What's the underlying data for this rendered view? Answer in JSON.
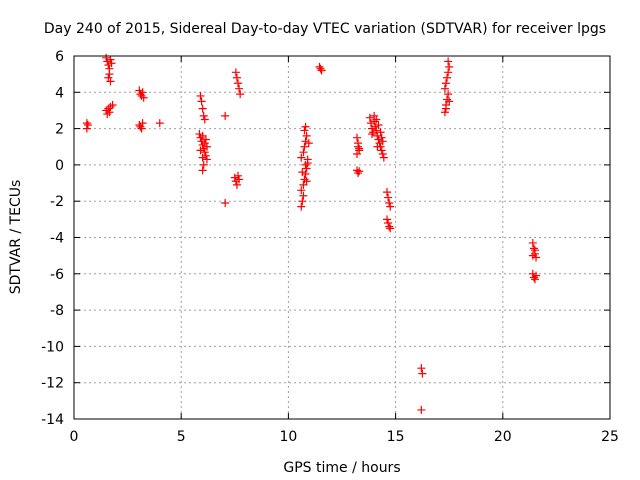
{
  "chart_data": {
    "type": "scatter",
    "title": "Day 240 of 2015, Sidereal Day-to-day VTEC variation (SDTVAR) for receiver lpgs",
    "xlabel": "GPS time / hours",
    "ylabel": "SDTVAR / TECUs",
    "xlim": [
      0,
      25
    ],
    "ylim": [
      -14,
      6
    ],
    "xticks": [
      0,
      5,
      10,
      15,
      20,
      25
    ],
    "yticks": [
      -14,
      -12,
      -10,
      -8,
      -6,
      -4,
      -2,
      0,
      2,
      4,
      6
    ],
    "grid": true,
    "marker": "+",
    "color": "#ff0000",
    "series": [
      {
        "name": "SDTVAR",
        "points": [
          [
            0.6,
            2.3
          ],
          [
            0.6,
            2.0
          ],
          [
            0.65,
            2.2
          ],
          [
            1.5,
            5.9
          ],
          [
            1.55,
            5.7
          ],
          [
            1.6,
            5.5
          ],
          [
            1.65,
            5.3
          ],
          [
            1.7,
            5.8
          ],
          [
            1.75,
            5.6
          ],
          [
            1.6,
            4.8
          ],
          [
            1.7,
            4.6
          ],
          [
            1.65,
            5.0
          ],
          [
            1.5,
            3.0
          ],
          [
            1.6,
            3.1
          ],
          [
            1.7,
            3.2
          ],
          [
            1.8,
            3.3
          ],
          [
            1.65,
            2.9
          ],
          [
            1.55,
            2.8
          ],
          [
            3.05,
            4.1
          ],
          [
            3.1,
            3.9
          ],
          [
            3.15,
            3.8
          ],
          [
            3.2,
            4.0
          ],
          [
            3.25,
            3.7
          ],
          [
            3.05,
            2.2
          ],
          [
            3.1,
            2.1
          ],
          [
            3.15,
            2.0
          ],
          [
            3.2,
            2.3
          ],
          [
            4.0,
            2.3
          ],
          [
            5.9,
            3.8
          ],
          [
            5.95,
            3.5
          ],
          [
            6.0,
            3.1
          ],
          [
            6.05,
            2.7
          ],
          [
            6.1,
            2.5
          ],
          [
            5.85,
            1.7
          ],
          [
            5.9,
            1.5
          ],
          [
            5.95,
            1.3
          ],
          [
            6.0,
            1.1
          ],
          [
            6.05,
            0.9
          ],
          [
            6.1,
            0.7
          ],
          [
            6.15,
            0.5
          ],
          [
            6.2,
            0.3
          ],
          [
            6.0,
            1.6
          ],
          [
            6.1,
            1.2
          ],
          [
            5.9,
            0.8
          ],
          [
            6.0,
            0.4
          ],
          [
            6.05,
            0.0
          ],
          [
            6.0,
            -0.3
          ],
          [
            6.2,
            1.0
          ],
          [
            6.15,
            1.4
          ],
          [
            7.05,
            2.7
          ],
          [
            7.05,
            -2.1
          ],
          [
            7.55,
            5.1
          ],
          [
            7.6,
            4.8
          ],
          [
            7.65,
            4.5
          ],
          [
            7.7,
            4.2
          ],
          [
            7.75,
            3.9
          ],
          [
            7.5,
            -0.7
          ],
          [
            7.55,
            -0.9
          ],
          [
            7.6,
            -1.1
          ],
          [
            7.7,
            -0.8
          ],
          [
            7.65,
            -0.6
          ],
          [
            10.6,
            -2.3
          ],
          [
            10.65,
            -2.0
          ],
          [
            10.7,
            -1.7
          ],
          [
            10.6,
            -1.4
          ],
          [
            10.7,
            -1.1
          ],
          [
            10.75,
            -0.8
          ],
          [
            10.8,
            -0.5
          ],
          [
            10.85,
            -0.2
          ],
          [
            10.9,
            0.1
          ],
          [
            10.6,
            0.4
          ],
          [
            10.7,
            0.7
          ],
          [
            10.75,
            1.0
          ],
          [
            10.8,
            1.3
          ],
          [
            10.85,
            1.6
          ],
          [
            10.8,
            2.1
          ],
          [
            10.75,
            1.9
          ],
          [
            10.9,
            0.3
          ],
          [
            10.95,
            1.2
          ],
          [
            10.65,
            -0.4
          ],
          [
            10.85,
            -0.9
          ],
          [
            10.8,
            0.0
          ],
          [
            11.45,
            5.4
          ],
          [
            11.5,
            5.3
          ],
          [
            11.55,
            5.2
          ],
          [
            13.2,
            1.5
          ],
          [
            13.25,
            1.2
          ],
          [
            13.3,
            0.9
          ],
          [
            13.2,
            0.6
          ],
          [
            13.3,
            0.8
          ],
          [
            13.25,
            1.0
          ],
          [
            13.2,
            -0.3
          ],
          [
            13.25,
            -0.45
          ],
          [
            13.3,
            -0.35
          ],
          [
            13.8,
            2.6
          ],
          [
            13.85,
            2.3
          ],
          [
            13.9,
            2.0
          ],
          [
            13.95,
            1.8
          ],
          [
            14.0,
            2.4
          ],
          [
            14.05,
            2.1
          ],
          [
            14.1,
            1.9
          ],
          [
            14.15,
            1.6
          ],
          [
            14.2,
            1.4
          ],
          [
            14.25,
            1.2
          ],
          [
            14.3,
            1.0
          ],
          [
            14.35,
            0.8
          ],
          [
            14.4,
            0.6
          ],
          [
            14.45,
            0.4
          ],
          [
            14.0,
            2.7
          ],
          [
            14.1,
            2.5
          ],
          [
            14.2,
            2.2
          ],
          [
            14.3,
            1.8
          ],
          [
            14.35,
            1.5
          ],
          [
            13.9,
            1.7
          ],
          [
            14.15,
            1.0
          ],
          [
            14.4,
            1.3
          ],
          [
            14.6,
            -1.5
          ],
          [
            14.65,
            -1.8
          ],
          [
            14.7,
            -2.1
          ],
          [
            14.75,
            -2.3
          ],
          [
            14.6,
            -3.0
          ],
          [
            14.65,
            -3.2
          ],
          [
            14.7,
            -3.4
          ],
          [
            14.75,
            -3.5
          ],
          [
            16.2,
            -11.2
          ],
          [
            16.25,
            -11.5
          ],
          [
            16.2,
            -13.5
          ],
          [
            17.3,
            2.9
          ],
          [
            17.35,
            3.3
          ],
          [
            17.4,
            3.6
          ],
          [
            17.45,
            3.9
          ],
          [
            17.3,
            4.2
          ],
          [
            17.35,
            4.5
          ],
          [
            17.4,
            4.8
          ],
          [
            17.45,
            5.1
          ],
          [
            17.5,
            5.4
          ],
          [
            17.45,
            5.7
          ],
          [
            17.35,
            3.1
          ],
          [
            17.5,
            3.5
          ],
          [
            21.4,
            -4.3
          ],
          [
            21.45,
            -4.6
          ],
          [
            21.5,
            -4.9
          ],
          [
            21.55,
            -5.1
          ],
          [
            21.4,
            -5.0
          ],
          [
            21.5,
            -4.7
          ],
          [
            21.4,
            -6.0
          ],
          [
            21.45,
            -6.2
          ],
          [
            21.5,
            -6.3
          ],
          [
            21.55,
            -6.1
          ]
        ]
      }
    ]
  }
}
